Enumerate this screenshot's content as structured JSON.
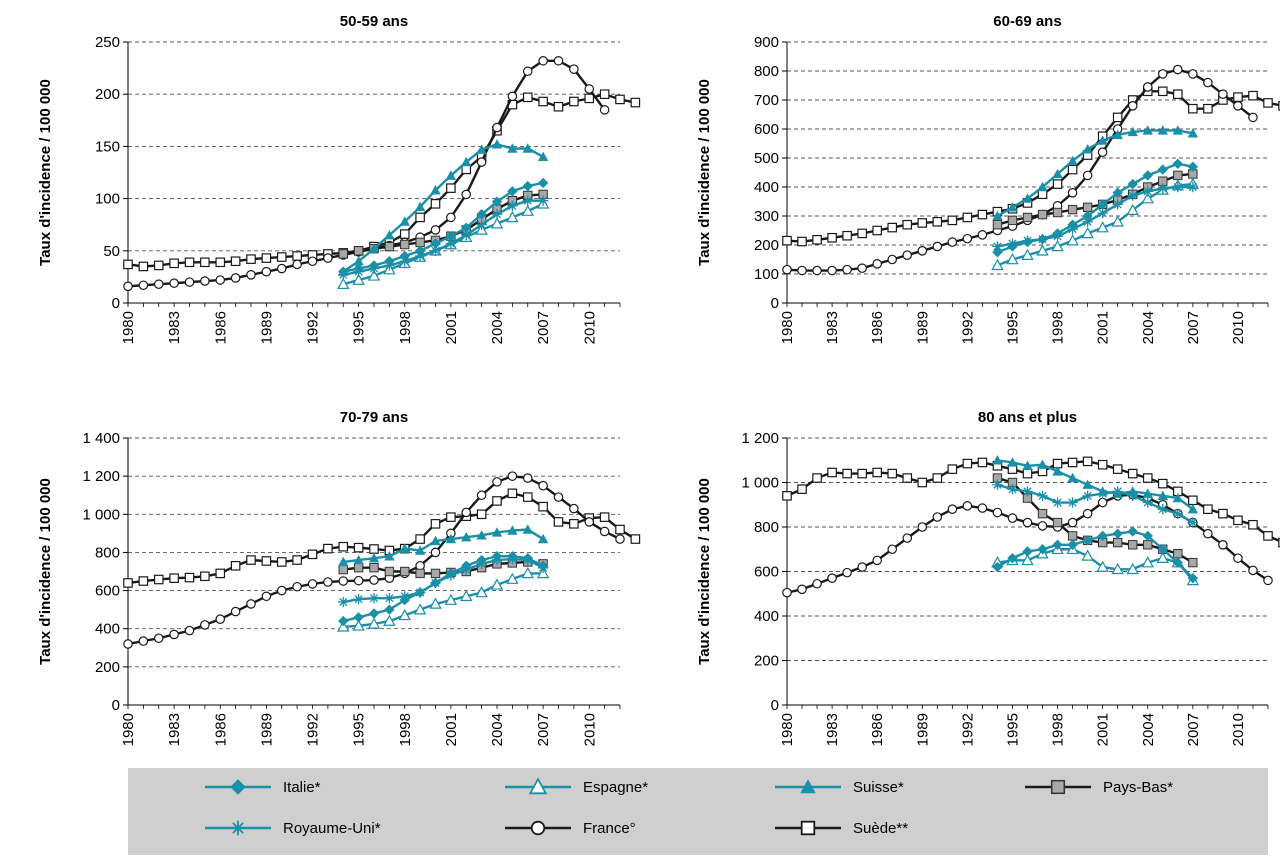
{
  "colors": {
    "teal": "#1a8fa8",
    "black": "#1a1a1a",
    "grid": "#555555",
    "square_fill": "#a8a8a8",
    "legend_bg": "#cfcfcf"
  },
  "legend": [
    {
      "label": "Italie*",
      "marker": "diamond",
      "color": "#1a8fa8"
    },
    {
      "label": "Espagne*",
      "marker": "triangle-open",
      "color": "#1a8fa8"
    },
    {
      "label": "Suisse*",
      "marker": "triangle-filled",
      "color": "#1a8fa8"
    },
    {
      "label": "Pays-Bas*",
      "marker": "square-gray",
      "color": "#1a1a1a"
    },
    {
      "label": "Royaume-Uni*",
      "marker": "star",
      "color": "#1a8fa8"
    },
    {
      "label": "France°",
      "marker": "circle-open",
      "color": "#1a1a1a"
    },
    {
      "label": "Suède**",
      "marker": "square-open",
      "color": "#1a1a1a"
    }
  ],
  "chart_data": [
    {
      "type": "line",
      "title": "50-59 ans",
      "ylabel": "Taux d'incidence / 100 000",
      "ylim": [
        0,
        250
      ],
      "yticks": [
        0,
        50,
        100,
        150,
        200,
        250
      ],
      "ytick_labels": [
        "0",
        "50",
        "100",
        "150",
        "200",
        "250"
      ],
      "xlim": [
        1980,
        2012
      ],
      "xticks": [
        1980,
        1983,
        1986,
        1989,
        1992,
        1995,
        1998,
        2001,
        2004,
        2007,
        2010
      ],
      "grid": "horizontal dashed",
      "series": [
        {
          "name": "France°",
          "x_start": 1980,
          "values": [
            16,
            17,
            18,
            19,
            20,
            21,
            22,
            24,
            27,
            30,
            33,
            37,
            40,
            43,
            46,
            49,
            52,
            55,
            58,
            63,
            70,
            82,
            104,
            135,
            168,
            198,
            222,
            232,
            232,
            224,
            205,
            185
          ]
        },
        {
          "name": "Suède**",
          "x_start": 1980,
          "values": [
            37,
            35,
            36,
            38,
            39,
            39,
            39,
            40,
            42,
            43,
            44,
            45,
            46,
            47,
            48,
            50,
            54,
            58,
            66,
            82,
            95,
            110,
            128,
            140,
            165,
            190,
            197,
            193,
            188,
            193,
            196,
            200,
            195,
            192
          ]
        },
        {
          "name": "Pays-Bas*",
          "x_start": 1994,
          "values": [
            47,
            50,
            52,
            54,
            56,
            58,
            60,
            64,
            70,
            80,
            90,
            98,
            103,
            104
          ]
        },
        {
          "name": "Suisse*",
          "x_start": 1994,
          "values": [
            30,
            40,
            52,
            65,
            78,
            92,
            108,
            122,
            135,
            147,
            152,
            148,
            148,
            140
          ]
        },
        {
          "name": "Italie*",
          "x_start": 1994,
          "values": [
            30,
            33,
            36,
            40,
            45,
            50,
            57,
            64,
            72,
            85,
            97,
            107,
            112,
            115
          ]
        },
        {
          "name": "Royaume-Uni*",
          "x_start": 1994,
          "values": [
            27,
            30,
            33,
            36,
            40,
            45,
            50,
            57,
            65,
            75,
            85,
            93,
            98,
            98
          ]
        },
        {
          "name": "Espagne*",
          "x_start": 1994,
          "values": [
            18,
            22,
            26,
            32,
            38,
            44,
            50,
            56,
            63,
            70,
            76,
            82,
            88,
            95
          ]
        }
      ]
    },
    {
      "type": "line",
      "title": "60-69 ans",
      "ylabel": "Taux d'incidence / 100 000",
      "ylim": [
        0,
        900
      ],
      "yticks": [
        0,
        100,
        200,
        300,
        400,
        500,
        600,
        700,
        800,
        900
      ],
      "ytick_labels": [
        "0",
        "100",
        "200",
        "300",
        "400",
        "500",
        "600",
        "700",
        "800",
        "900"
      ],
      "xlim": [
        1980,
        2012
      ],
      "xticks": [
        1980,
        1983,
        1986,
        1989,
        1992,
        1995,
        1998,
        2001,
        2004,
        2007,
        2010
      ],
      "grid": "horizontal dashed",
      "series": [
        {
          "name": "France°",
          "x_start": 1980,
          "values": [
            115,
            112,
            112,
            112,
            115,
            120,
            135,
            150,
            165,
            180,
            195,
            210,
            222,
            235,
            250,
            265,
            285,
            305,
            335,
            380,
            440,
            520,
            600,
            680,
            745,
            790,
            805,
            790,
            760,
            720,
            680,
            640
          ]
        },
        {
          "name": "Suède**",
          "x_start": 1980,
          "values": [
            215,
            212,
            218,
            225,
            232,
            240,
            250,
            260,
            270,
            276,
            280,
            285,
            295,
            305,
            315,
            325,
            345,
            375,
            410,
            460,
            510,
            575,
            640,
            700,
            730,
            730,
            720,
            670,
            670,
            700,
            710,
            715,
            690,
            680
          ]
        },
        {
          "name": "Pays-Bas*",
          "x_start": 1994,
          "values": [
            270,
            285,
            295,
            305,
            312,
            322,
            330,
            340,
            355,
            375,
            400,
            420,
            440,
            445
          ]
        },
        {
          "name": "Suisse*",
          "x_start": 1994,
          "values": [
            300,
            330,
            360,
            400,
            445,
            490,
            530,
            560,
            580,
            590,
            595,
            595,
            595,
            585
          ]
        },
        {
          "name": "Italie*",
          "x_start": 1994,
          "values": [
            175,
            195,
            210,
            220,
            240,
            270,
            300,
            340,
            380,
            410,
            440,
            460,
            480,
            470
          ]
        },
        {
          "name": "Royaume-Uni*",
          "x_start": 1994,
          "values": [
            195,
            205,
            215,
            220,
            230,
            255,
            280,
            310,
            340,
            370,
            385,
            395,
            400,
            400
          ]
        },
        {
          "name": "Espagne*",
          "x_start": 1994,
          "values": [
            130,
            150,
            165,
            180,
            195,
            215,
            240,
            260,
            280,
            320,
            360,
            390,
            405,
            410
          ]
        }
      ]
    },
    {
      "type": "line",
      "title": "70-79 ans",
      "ylabel": "Taux d'incidence / 100 000",
      "ylim": [
        0,
        1400
      ],
      "yticks": [
        0,
        200,
        400,
        600,
        800,
        1000,
        1200,
        1400
      ],
      "ytick_labels": [
        "0",
        "200",
        "400",
        "600",
        "800",
        "1 000",
        "1 200",
        "1 400"
      ],
      "xlim": [
        1980,
        2012
      ],
      "xticks": [
        1980,
        1983,
        1986,
        1989,
        1992,
        1995,
        1998,
        2001,
        2004,
        2007,
        2010
      ],
      "grid": "horizontal dashed",
      "series": [
        {
          "name": "France°",
          "x_start": 1980,
          "values": [
            320,
            335,
            350,
            370,
            390,
            420,
            450,
            490,
            530,
            570,
            600,
            620,
            635,
            645,
            650,
            652,
            655,
            665,
            690,
            730,
            800,
            900,
            1010,
            1100,
            1170,
            1200,
            1190,
            1150,
            1090,
            1030,
            960,
            910,
            870
          ]
        },
        {
          "name": "Suède**",
          "x_start": 1980,
          "values": [
            640,
            650,
            658,
            665,
            668,
            675,
            690,
            730,
            760,
            755,
            750,
            760,
            790,
            820,
            830,
            825,
            818,
            810,
            820,
            870,
            950,
            985,
            990,
            1000,
            1070,
            1110,
            1090,
            1040,
            960,
            950,
            980,
            985,
            920,
            870
          ]
        },
        {
          "name": "Pays-Bas*",
          "x_start": 1994,
          "values": [
            710,
            720,
            720,
            700,
            700,
            690,
            690,
            695,
            700,
            720,
            740,
            745,
            750,
            740
          ]
        },
        {
          "name": "Suisse*",
          "x_start": 1994,
          "values": [
            750,
            760,
            770,
            780,
            820,
            810,
            860,
            870,
            880,
            890,
            905,
            915,
            920,
            870
          ]
        },
        {
          "name": "Italie*",
          "x_start": 1994,
          "values": [
            440,
            460,
            480,
            500,
            550,
            590,
            640,
            690,
            730,
            760,
            780,
            780,
            770,
            730
          ]
        },
        {
          "name": "Royaume-Uni*",
          "x_start": 1994,
          "values": [
            540,
            555,
            560,
            560,
            570,
            590,
            640,
            680,
            710,
            740,
            760,
            765,
            760,
            720
          ]
        },
        {
          "name": "Espagne*",
          "x_start": 1994,
          "values": [
            410,
            415,
            425,
            440,
            470,
            500,
            530,
            550,
            570,
            590,
            630,
            660,
            690,
            690
          ]
        }
      ]
    },
    {
      "type": "line",
      "title": "80 ans et plus",
      "ylabel": "Taux d'incidence / 100 000",
      "ylim": [
        0,
        1200
      ],
      "yticks": [
        0,
        200,
        400,
        600,
        800,
        1000,
        1200
      ],
      "ytick_labels": [
        "0",
        "200",
        "400",
        "600",
        "800",
        "1 000",
        "1 200"
      ],
      "xlim": [
        1980,
        2012
      ],
      "xticks": [
        1980,
        1983,
        1986,
        1989,
        1992,
        1995,
        1998,
        2001,
        2004,
        2007,
        2010
      ],
      "grid": "horizontal dashed",
      "series": [
        {
          "name": "France°",
          "x_start": 1980,
          "values": [
            505,
            520,
            545,
            570,
            595,
            620,
            650,
            700,
            750,
            800,
            845,
            880,
            895,
            885,
            865,
            840,
            820,
            805,
            800,
            820,
            860,
            910,
            940,
            945,
            930,
            900,
            860,
            820,
            770,
            720,
            660,
            605,
            560
          ]
        },
        {
          "name": "Suède**",
          "x_start": 1980,
          "values": [
            940,
            970,
            1020,
            1045,
            1040,
            1040,
            1045,
            1040,
            1020,
            1000,
            1020,
            1060,
            1085,
            1090,
            1075,
            1060,
            1040,
            1050,
            1085,
            1090,
            1095,
            1080,
            1060,
            1040,
            1020,
            995,
            960,
            920,
            880,
            860,
            830,
            810,
            760,
            730
          ]
        },
        {
          "name": "Pays-Bas*",
          "x_start": 1994,
          "values": [
            1020,
            1000,
            930,
            860,
            820,
            760,
            740,
            730,
            730,
            720,
            720,
            700,
            680,
            640
          ]
        },
        {
          "name": "Suisse*",
          "x_start": 1994,
          "values": [
            1100,
            1090,
            1075,
            1080,
            1050,
            1020,
            990,
            960,
            950,
            960,
            950,
            940,
            930,
            880
          ]
        },
        {
          "name": "Italie*",
          "x_start": 1994,
          "values": [
            620,
            660,
            690,
            700,
            720,
            720,
            740,
            760,
            770,
            780,
            760,
            700,
            640,
            570
          ]
        },
        {
          "name": "Royaume-Uni*",
          "x_start": 1994,
          "values": [
            990,
            970,
            960,
            940,
            910,
            910,
            940,
            950,
            960,
            940,
            910,
            880,
            860,
            820
          ]
        },
        {
          "name": "Espagne*",
          "x_start": 1994,
          "values": [
            640,
            650,
            650,
            680,
            700,
            700,
            670,
            620,
            610,
            610,
            640,
            660,
            640,
            560
          ]
        }
      ]
    }
  ]
}
